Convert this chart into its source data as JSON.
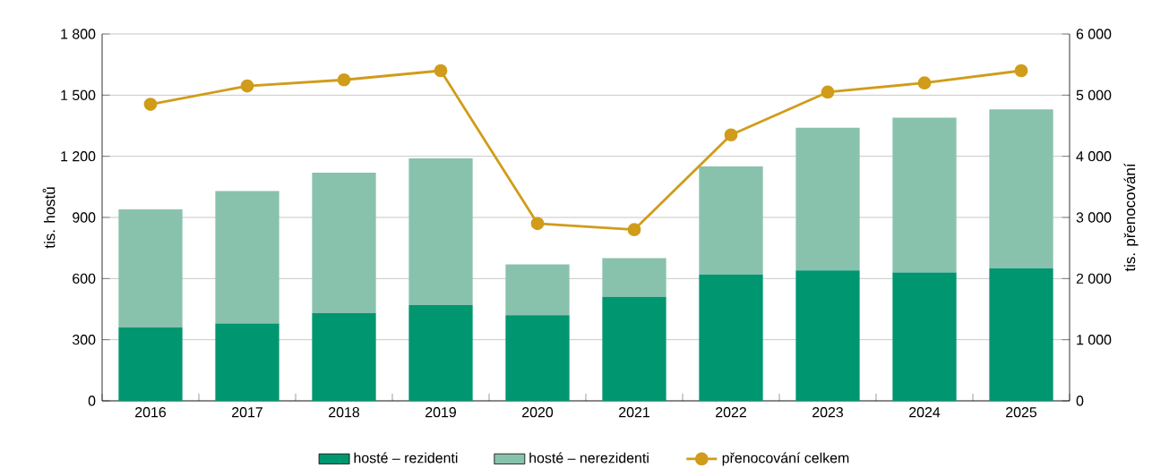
{
  "chart_data": {
    "type": "bar",
    "stacked": true,
    "categories": [
      "2016",
      "2017",
      "2018",
      "2019",
      "2020",
      "2021",
      "2022",
      "2023",
      "2024",
      "2025"
    ],
    "series": [
      {
        "name": "hosté – rezidenti",
        "color": "#009670",
        "values": [
          360,
          380,
          430,
          470,
          420,
          510,
          620,
          640,
          630,
          650
        ]
      },
      {
        "name": "hosté – nerezidenti",
        "color": "#88c2ad",
        "values": [
          580,
          650,
          690,
          720,
          250,
          190,
          530,
          700,
          760,
          780
        ]
      },
      {
        "name": "přenocování celkem",
        "type": "line",
        "axis": "y2",
        "color": "#d09c1a",
        "marker": "circle",
        "values": [
          4850,
          5150,
          5250,
          5400,
          2900,
          2800,
          4350,
          5050,
          5200,
          5400
        ]
      }
    ],
    "ylabel": "tis. hostů",
    "y2label": "tis. přenocování",
    "ylim": [
      0,
      1800
    ],
    "yticks": [
      0,
      300,
      600,
      900,
      {
        "value": 1200,
        "label": "1 200"
      },
      {
        "value": 1500,
        "label": "1 500"
      },
      {
        "value": 1800,
        "label": "1 800"
      }
    ],
    "y2lim": [
      0,
      6000
    ],
    "y2ticks": [
      0,
      {
        "value": 1000,
        "label": "1 000"
      },
      {
        "value": 2000,
        "label": "2 000"
      },
      {
        "value": 3000,
        "label": "3 000"
      },
      {
        "value": 4000,
        "label": "4 000"
      },
      {
        "value": 5000,
        "label": "5 000"
      },
      {
        "value": 6000,
        "label": "6 000"
      }
    ],
    "grid": "y",
    "legend": "bottom"
  }
}
